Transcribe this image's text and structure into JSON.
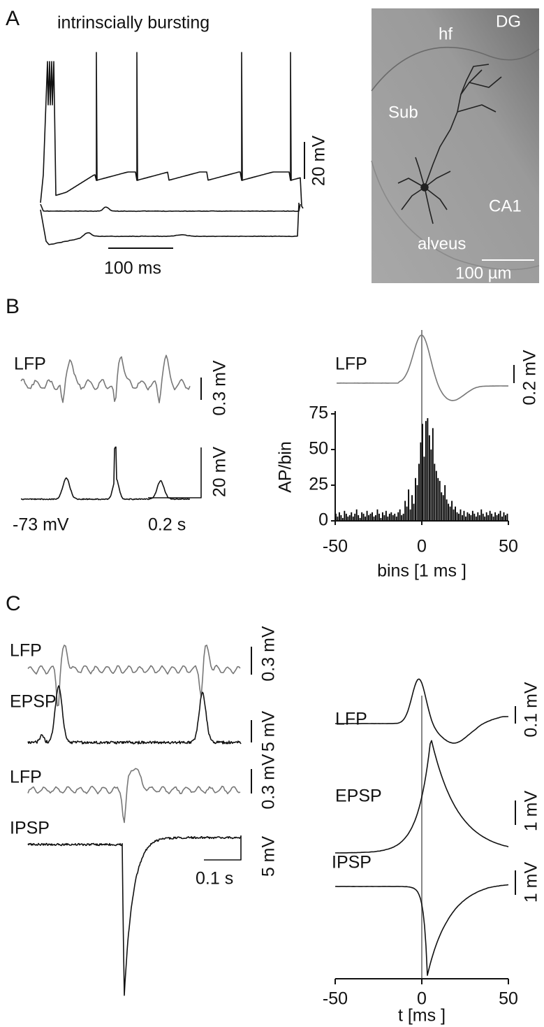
{
  "panels": {
    "A": {
      "label": "A",
      "title": "intrinscially bursting",
      "scale_v": "20 mV",
      "scale_t": "100 ms",
      "image_labels": [
        "hf",
        "DG",
        "Sub",
        "CA1",
        "alveus"
      ],
      "image_scale": "100 µm"
    },
    "B": {
      "label": "B",
      "left": {
        "trace": "LFP",
        "scale_lfp": "0.3 mV",
        "scale_vm": "20 mV",
        "vm": "-73 mV",
        "scale_t": "0.2 s"
      },
      "right": {
        "trace": "LFP",
        "scale": "0.2 mV"
      }
    },
    "C": {
      "label": "C",
      "left": {
        "traces": [
          "LFP",
          "EPSP",
          "LFP",
          "IPSP"
        ],
        "scales": [
          "0.3 mV",
          "5 mV",
          "0.3 mV",
          "5 mV"
        ],
        "scale_t": "0.1 s"
      },
      "right": {
        "traces": [
          "LFP",
          "EPSP",
          "IPSP"
        ],
        "scales": [
          "0.1 mV",
          "1 mV",
          "1 mV"
        ],
        "xticks": [
          "-50",
          "0",
          "50"
        ],
        "xlabel": "t [ms ]"
      }
    }
  },
  "chart_data": {
    "type": "histogram",
    "bins": [
      -50,
      -49,
      -48,
      -47,
      -46,
      -45,
      -44,
      -43,
      -42,
      -41,
      -40,
      -39,
      -38,
      -37,
      -36,
      -35,
      -34,
      -33,
      -32,
      -31,
      -30,
      -29,
      -28,
      -27,
      -26,
      -25,
      -24,
      -23,
      -22,
      -21,
      -20,
      -19,
      -18,
      -17,
      -16,
      -15,
      -14,
      -13,
      -12,
      -11,
      -10,
      -9,
      -8,
      -7,
      -6,
      -5,
      -4,
      -3,
      -2,
      -1,
      0,
      1,
      2,
      3,
      4,
      5,
      6,
      7,
      8,
      9,
      10,
      11,
      12,
      13,
      14,
      15,
      16,
      17,
      18,
      19,
      20,
      21,
      22,
      23,
      24,
      25,
      26,
      27,
      28,
      29,
      30,
      31,
      32,
      33,
      34,
      35,
      36,
      37,
      38,
      39,
      40,
      41,
      42,
      43,
      44,
      45,
      46,
      47,
      48,
      49,
      50
    ],
    "values": [
      5,
      3,
      6,
      4,
      2,
      7,
      5,
      3,
      4,
      6,
      3,
      5,
      8,
      4,
      2,
      6,
      5,
      3,
      7,
      4,
      5,
      6,
      3,
      4,
      8,
      5,
      2,
      6,
      4,
      7,
      3,
      5,
      6,
      4,
      5,
      3,
      6,
      8,
      4,
      5,
      14,
      10,
      22,
      8,
      18,
      12,
      30,
      25,
      40,
      55,
      68,
      45,
      70,
      72,
      60,
      50,
      65,
      40,
      35,
      30,
      28,
      20,
      18,
      25,
      15,
      12,
      10,
      14,
      8,
      10,
      6,
      5,
      8,
      4,
      7,
      3,
      6,
      5,
      4,
      7,
      5,
      3,
      6,
      4,
      8,
      5,
      3,
      6,
      4,
      7,
      5,
      3,
      6,
      4,
      5,
      7,
      3,
      6,
      4,
      5
    ],
    "color": "#000000",
    "xlim": [
      -50,
      50
    ],
    "ylim": [
      0,
      75
    ],
    "xticks": [
      -50,
      0,
      50
    ],
    "yticks": [
      0,
      25,
      50,
      75
    ],
    "xlabel": "bins [1 ms ]",
    "ylabel": "AP/bin"
  }
}
